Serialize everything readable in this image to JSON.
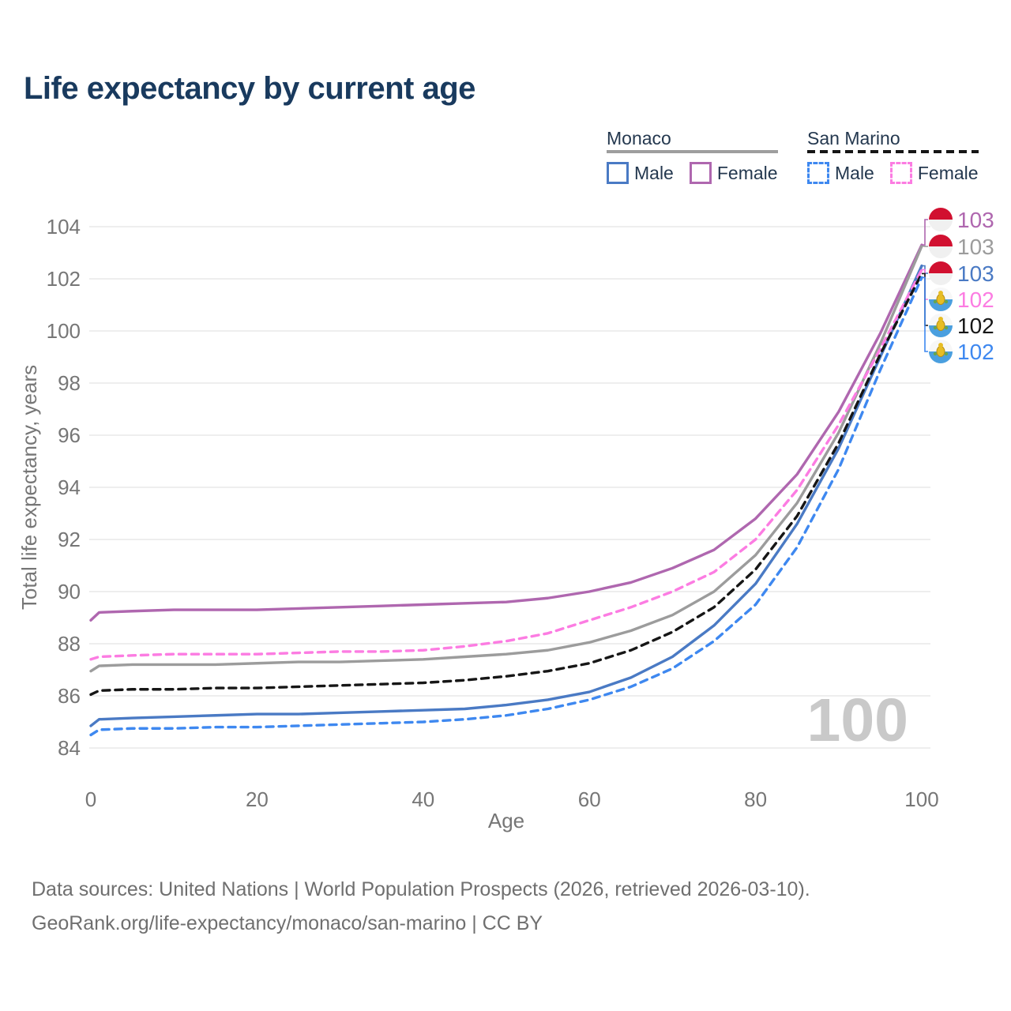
{
  "title": "Life expectancy by current age",
  "legend": {
    "groups": [
      {
        "label": "Monaco",
        "line_style": "solid",
        "line_color": "#9e9e9e",
        "items": [
          {
            "label": "Male",
            "color": "#4a7ac4",
            "dashed": false
          },
          {
            "label": "Female",
            "color": "#af67af",
            "dashed": false
          }
        ]
      },
      {
        "label": "San Marino",
        "line_style": "dashed",
        "line_color": "#151515",
        "items": [
          {
            "label": "Male",
            "color": "#3e88f0",
            "dashed": true
          },
          {
            "label": "Female",
            "color": "#fc7ce2",
            "dashed": true
          }
        ]
      }
    ]
  },
  "watermark": "100",
  "footer": {
    "line1": "Data sources: United Nations | World Population Prospects (2026, retrieved 2026-03-10).",
    "line2": "GeoRank.org/life-expectancy/monaco/san-marino | CC BY"
  },
  "chart_data": {
    "type": "line",
    "title": "Life expectancy by current age",
    "xlabel": "Age",
    "ylabel": "Total life expectancy, years",
    "xlim": [
      0,
      100
    ],
    "ylim": [
      84,
      104
    ],
    "xticks": [
      0,
      20,
      40,
      60,
      80,
      100
    ],
    "yticks": [
      84,
      86,
      88,
      90,
      92,
      94,
      96,
      98,
      100,
      102,
      104
    ],
    "grid": "horizontal",
    "legend_position": "top-right",
    "x": [
      0,
      1,
      5,
      10,
      15,
      20,
      25,
      30,
      35,
      40,
      45,
      50,
      55,
      60,
      65,
      70,
      75,
      80,
      85,
      90,
      95,
      100
    ],
    "series": [
      {
        "name": "Monaco Female",
        "country": "Monaco",
        "sex": "Female",
        "color": "#af67af",
        "dashed": false,
        "flag": "monaco",
        "end_label": "103",
        "values": [
          88.9,
          89.2,
          89.25,
          89.3,
          89.3,
          89.3,
          89.35,
          89.4,
          89.45,
          89.5,
          89.55,
          89.6,
          89.75,
          90.0,
          90.35,
          90.9,
          91.6,
          92.8,
          94.5,
          96.9,
          99.9,
          103.3
        ]
      },
      {
        "name": "Monaco Both Sexes",
        "country": "Monaco",
        "sex": "Both",
        "color": "#9c9c9c",
        "dashed": false,
        "flag": "monaco",
        "end_label": "103",
        "values": [
          86.95,
          87.15,
          87.2,
          87.2,
          87.2,
          87.25,
          87.3,
          87.3,
          87.35,
          87.4,
          87.5,
          87.6,
          87.75,
          88.05,
          88.5,
          89.1,
          90.0,
          91.4,
          93.4,
          96.1,
          99.5,
          103.25
        ]
      },
      {
        "name": "Monaco Male",
        "country": "Monaco",
        "sex": "Male",
        "color": "#4a7ac4",
        "dashed": false,
        "flag": "monaco",
        "end_label": "103",
        "values": [
          84.85,
          85.1,
          85.15,
          85.2,
          85.25,
          85.3,
          85.3,
          85.35,
          85.4,
          85.45,
          85.5,
          85.65,
          85.85,
          86.15,
          86.7,
          87.5,
          88.7,
          90.3,
          92.6,
          95.5,
          99.0,
          102.5
        ]
      },
      {
        "name": "San Marino Female",
        "country": "San Marino",
        "sex": "Female",
        "color": "#fc7ce2",
        "dashed": true,
        "flag": "san-marino",
        "end_label": "102",
        "values": [
          87.4,
          87.5,
          87.55,
          87.6,
          87.6,
          87.6,
          87.65,
          87.7,
          87.7,
          87.75,
          87.9,
          88.1,
          88.4,
          88.9,
          89.4,
          90.0,
          90.75,
          92.0,
          93.9,
          96.4,
          99.3,
          102.35
        ]
      },
      {
        "name": "San Marino Both Sexes",
        "country": "San Marino",
        "sex": "Both",
        "color": "#161616",
        "dashed": true,
        "flag": "san-marino",
        "end_label": "102",
        "values": [
          86.05,
          86.2,
          86.25,
          86.25,
          86.3,
          86.3,
          86.35,
          86.4,
          86.45,
          86.5,
          86.6,
          86.75,
          86.95,
          87.25,
          87.75,
          88.45,
          89.4,
          90.85,
          92.9,
          95.7,
          99.1,
          102.2
        ]
      },
      {
        "name": "San Marino Male",
        "country": "San Marino",
        "sex": "Male",
        "color": "#3e88f0",
        "dashed": true,
        "flag": "san-marino",
        "end_label": "102",
        "values": [
          84.5,
          84.7,
          84.75,
          84.75,
          84.8,
          84.8,
          84.85,
          84.9,
          84.95,
          85.0,
          85.1,
          85.25,
          85.5,
          85.85,
          86.35,
          87.05,
          88.1,
          89.5,
          91.7,
          94.7,
          98.5,
          102.05
        ]
      }
    ]
  }
}
